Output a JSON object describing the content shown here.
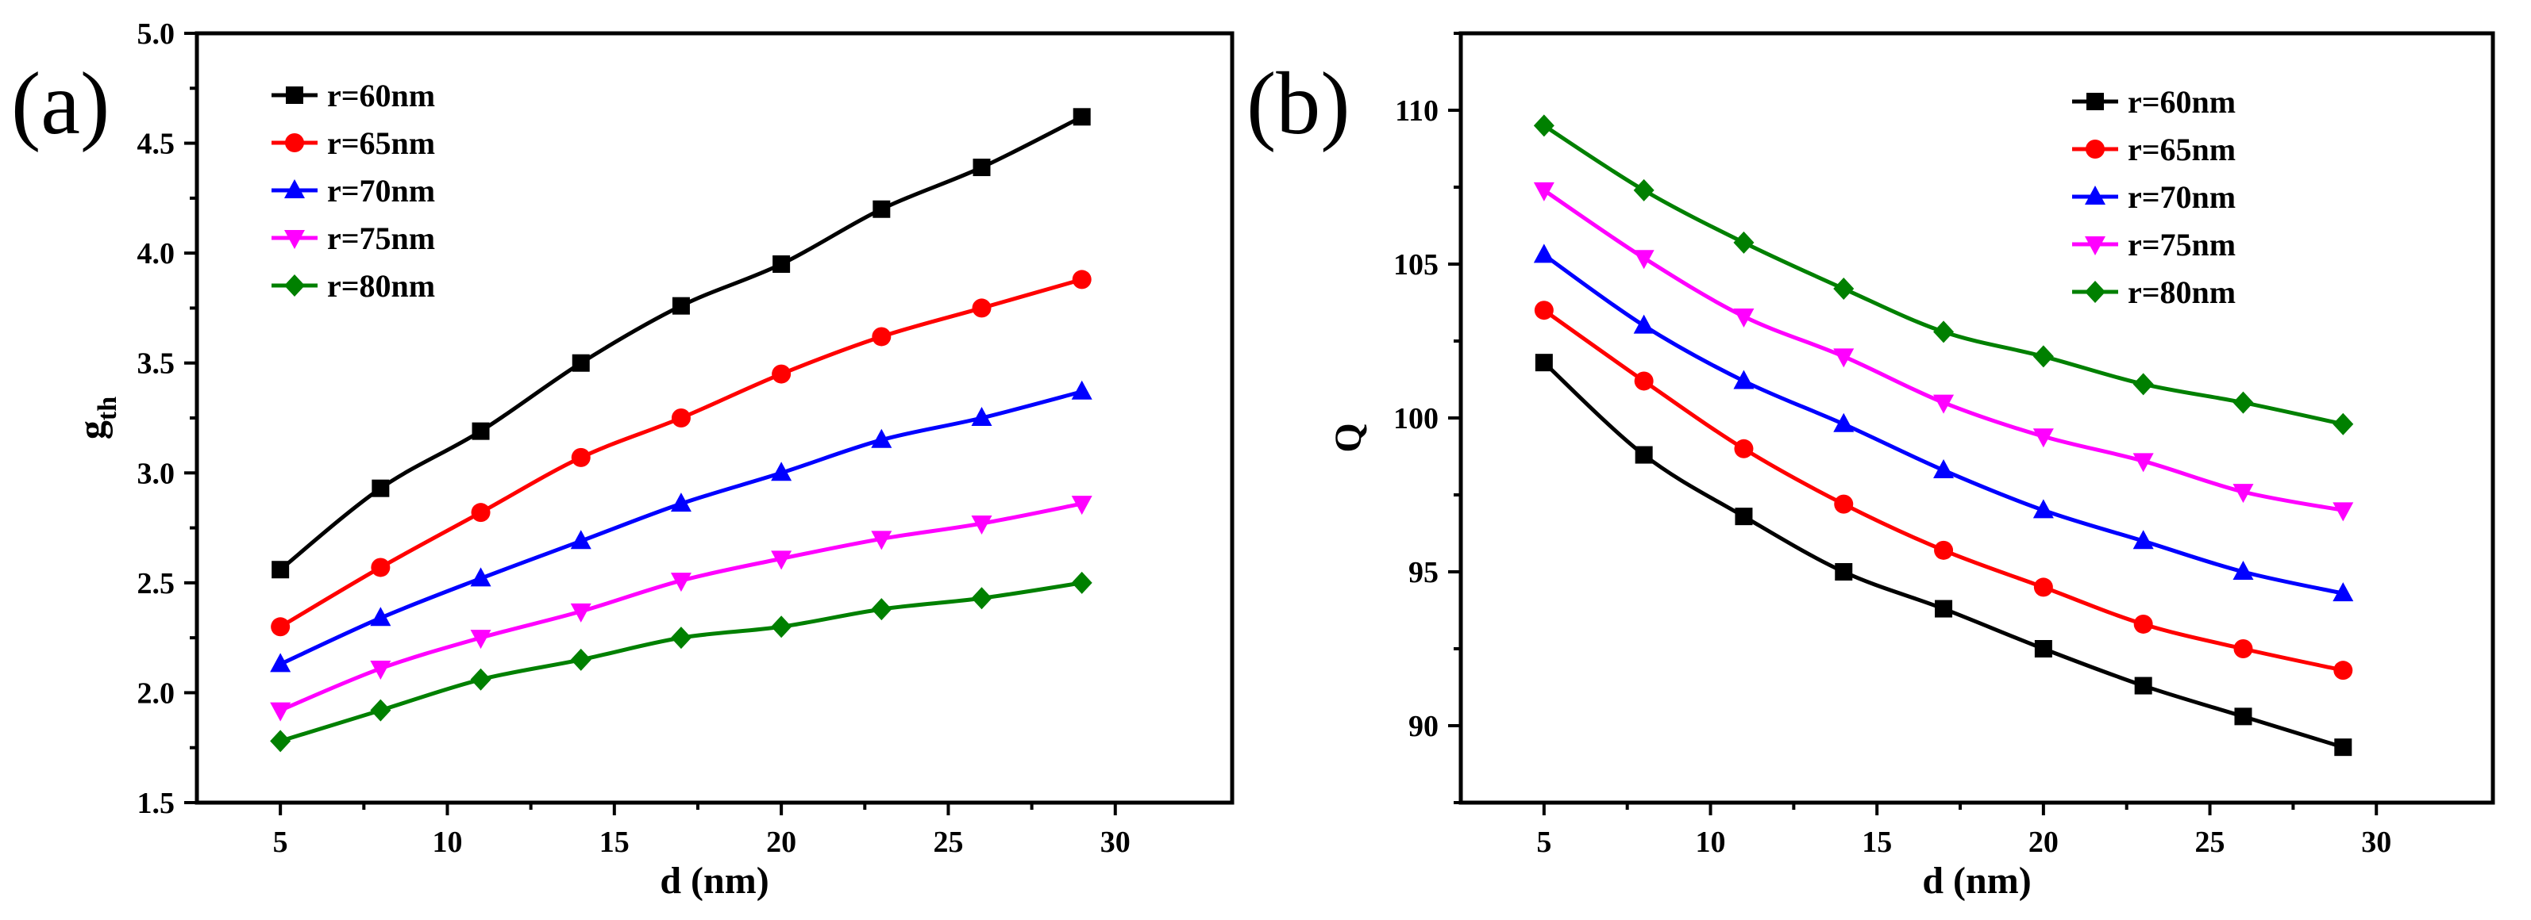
{
  "chart_data": [
    {
      "type": "line",
      "panel_label": "(a)",
      "xlabel": "d (nm)",
      "ylabel": "g",
      "ylabel_sub": "th",
      "xlim": [
        2.5,
        33.5
      ],
      "ylim": [
        1.5,
        5.0
      ],
      "xticks": [
        5,
        10,
        15,
        20,
        25,
        30
      ],
      "yticks": [
        1.5,
        2.0,
        2.5,
        3.0,
        3.5,
        4.0,
        4.5,
        5.0
      ],
      "xtick_labels": [
        "5",
        "10",
        "15",
        "20",
        "25",
        "30"
      ],
      "ytick_labels": [
        "1.5",
        "2.0",
        "2.5",
        "3.0",
        "3.5",
        "4.0",
        "4.5",
        "5.0"
      ],
      "legend_position": "top-left",
      "x": [
        5,
        8,
        11,
        14,
        17,
        20,
        23,
        26,
        29
      ],
      "series": [
        {
          "name": "r=60nm",
          "color": "#000000",
          "marker": "square",
          "values": [
            2.56,
            2.93,
            3.19,
            3.5,
            3.76,
            3.95,
            4.2,
            4.39,
            4.62
          ]
        },
        {
          "name": "r=65nm",
          "color": "#ff0000",
          "marker": "circle",
          "values": [
            2.3,
            2.57,
            2.82,
            3.07,
            3.25,
            3.45,
            3.62,
            3.75,
            3.88
          ]
        },
        {
          "name": "r=70nm",
          "color": "#0000ff",
          "marker": "triangle-up",
          "values": [
            2.13,
            2.34,
            2.52,
            2.69,
            2.86,
            3.0,
            3.15,
            3.25,
            3.37
          ]
        },
        {
          "name": "r=75nm",
          "color": "#ff00ff",
          "marker": "triangle-down",
          "values": [
            1.92,
            2.11,
            2.25,
            2.37,
            2.51,
            2.61,
            2.7,
            2.77,
            2.86
          ]
        },
        {
          "name": "r=80nm",
          "color": "#008000",
          "marker": "diamond",
          "values": [
            1.78,
            1.92,
            2.06,
            2.15,
            2.25,
            2.3,
            2.38,
            2.43,
            2.5
          ]
        }
      ]
    },
    {
      "type": "line",
      "panel_label": "(b)",
      "xlabel": "d (nm)",
      "ylabel": "Q",
      "ylabel_sub": "",
      "xlim": [
        2.5,
        33.5
      ],
      "ylim": [
        87.5,
        112.5
      ],
      "xticks": [
        5,
        10,
        15,
        20,
        25,
        30
      ],
      "yticks": [
        90,
        95,
        100,
        105,
        110
      ],
      "xtick_labels": [
        "5",
        "10",
        "15",
        "20",
        "25",
        "30"
      ],
      "ytick_labels": [
        "90",
        "95",
        "100",
        "105",
        "110"
      ],
      "legend_position": "top-right",
      "x": [
        5,
        8,
        11,
        14,
        17,
        20,
        23,
        26,
        29
      ],
      "series": [
        {
          "name": "r=60nm",
          "color": "#000000",
          "marker": "square",
          "values": [
            101.8,
            98.8,
            96.8,
            95.0,
            93.8,
            92.5,
            91.3,
            90.3,
            89.3
          ]
        },
        {
          "name": "r=65nm",
          "color": "#ff0000",
          "marker": "circle",
          "values": [
            103.5,
            101.2,
            99.0,
            97.2,
            95.7,
            94.5,
            93.3,
            92.5,
            91.8
          ]
        },
        {
          "name": "r=70nm",
          "color": "#0000ff",
          "marker": "triangle-up",
          "values": [
            105.3,
            103.0,
            101.2,
            99.8,
            98.3,
            97.0,
            96.0,
            95.0,
            94.3
          ]
        },
        {
          "name": "r=75nm",
          "color": "#ff00ff",
          "marker": "triangle-down",
          "values": [
            107.4,
            105.2,
            103.3,
            102.0,
            100.5,
            99.4,
            98.6,
            97.6,
            97.0
          ]
        },
        {
          "name": "r=80nm",
          "color": "#008000",
          "marker": "diamond",
          "values": [
            109.5,
            107.4,
            105.7,
            104.2,
            102.8,
            102.0,
            101.1,
            100.5,
            99.8
          ]
        }
      ]
    }
  ]
}
